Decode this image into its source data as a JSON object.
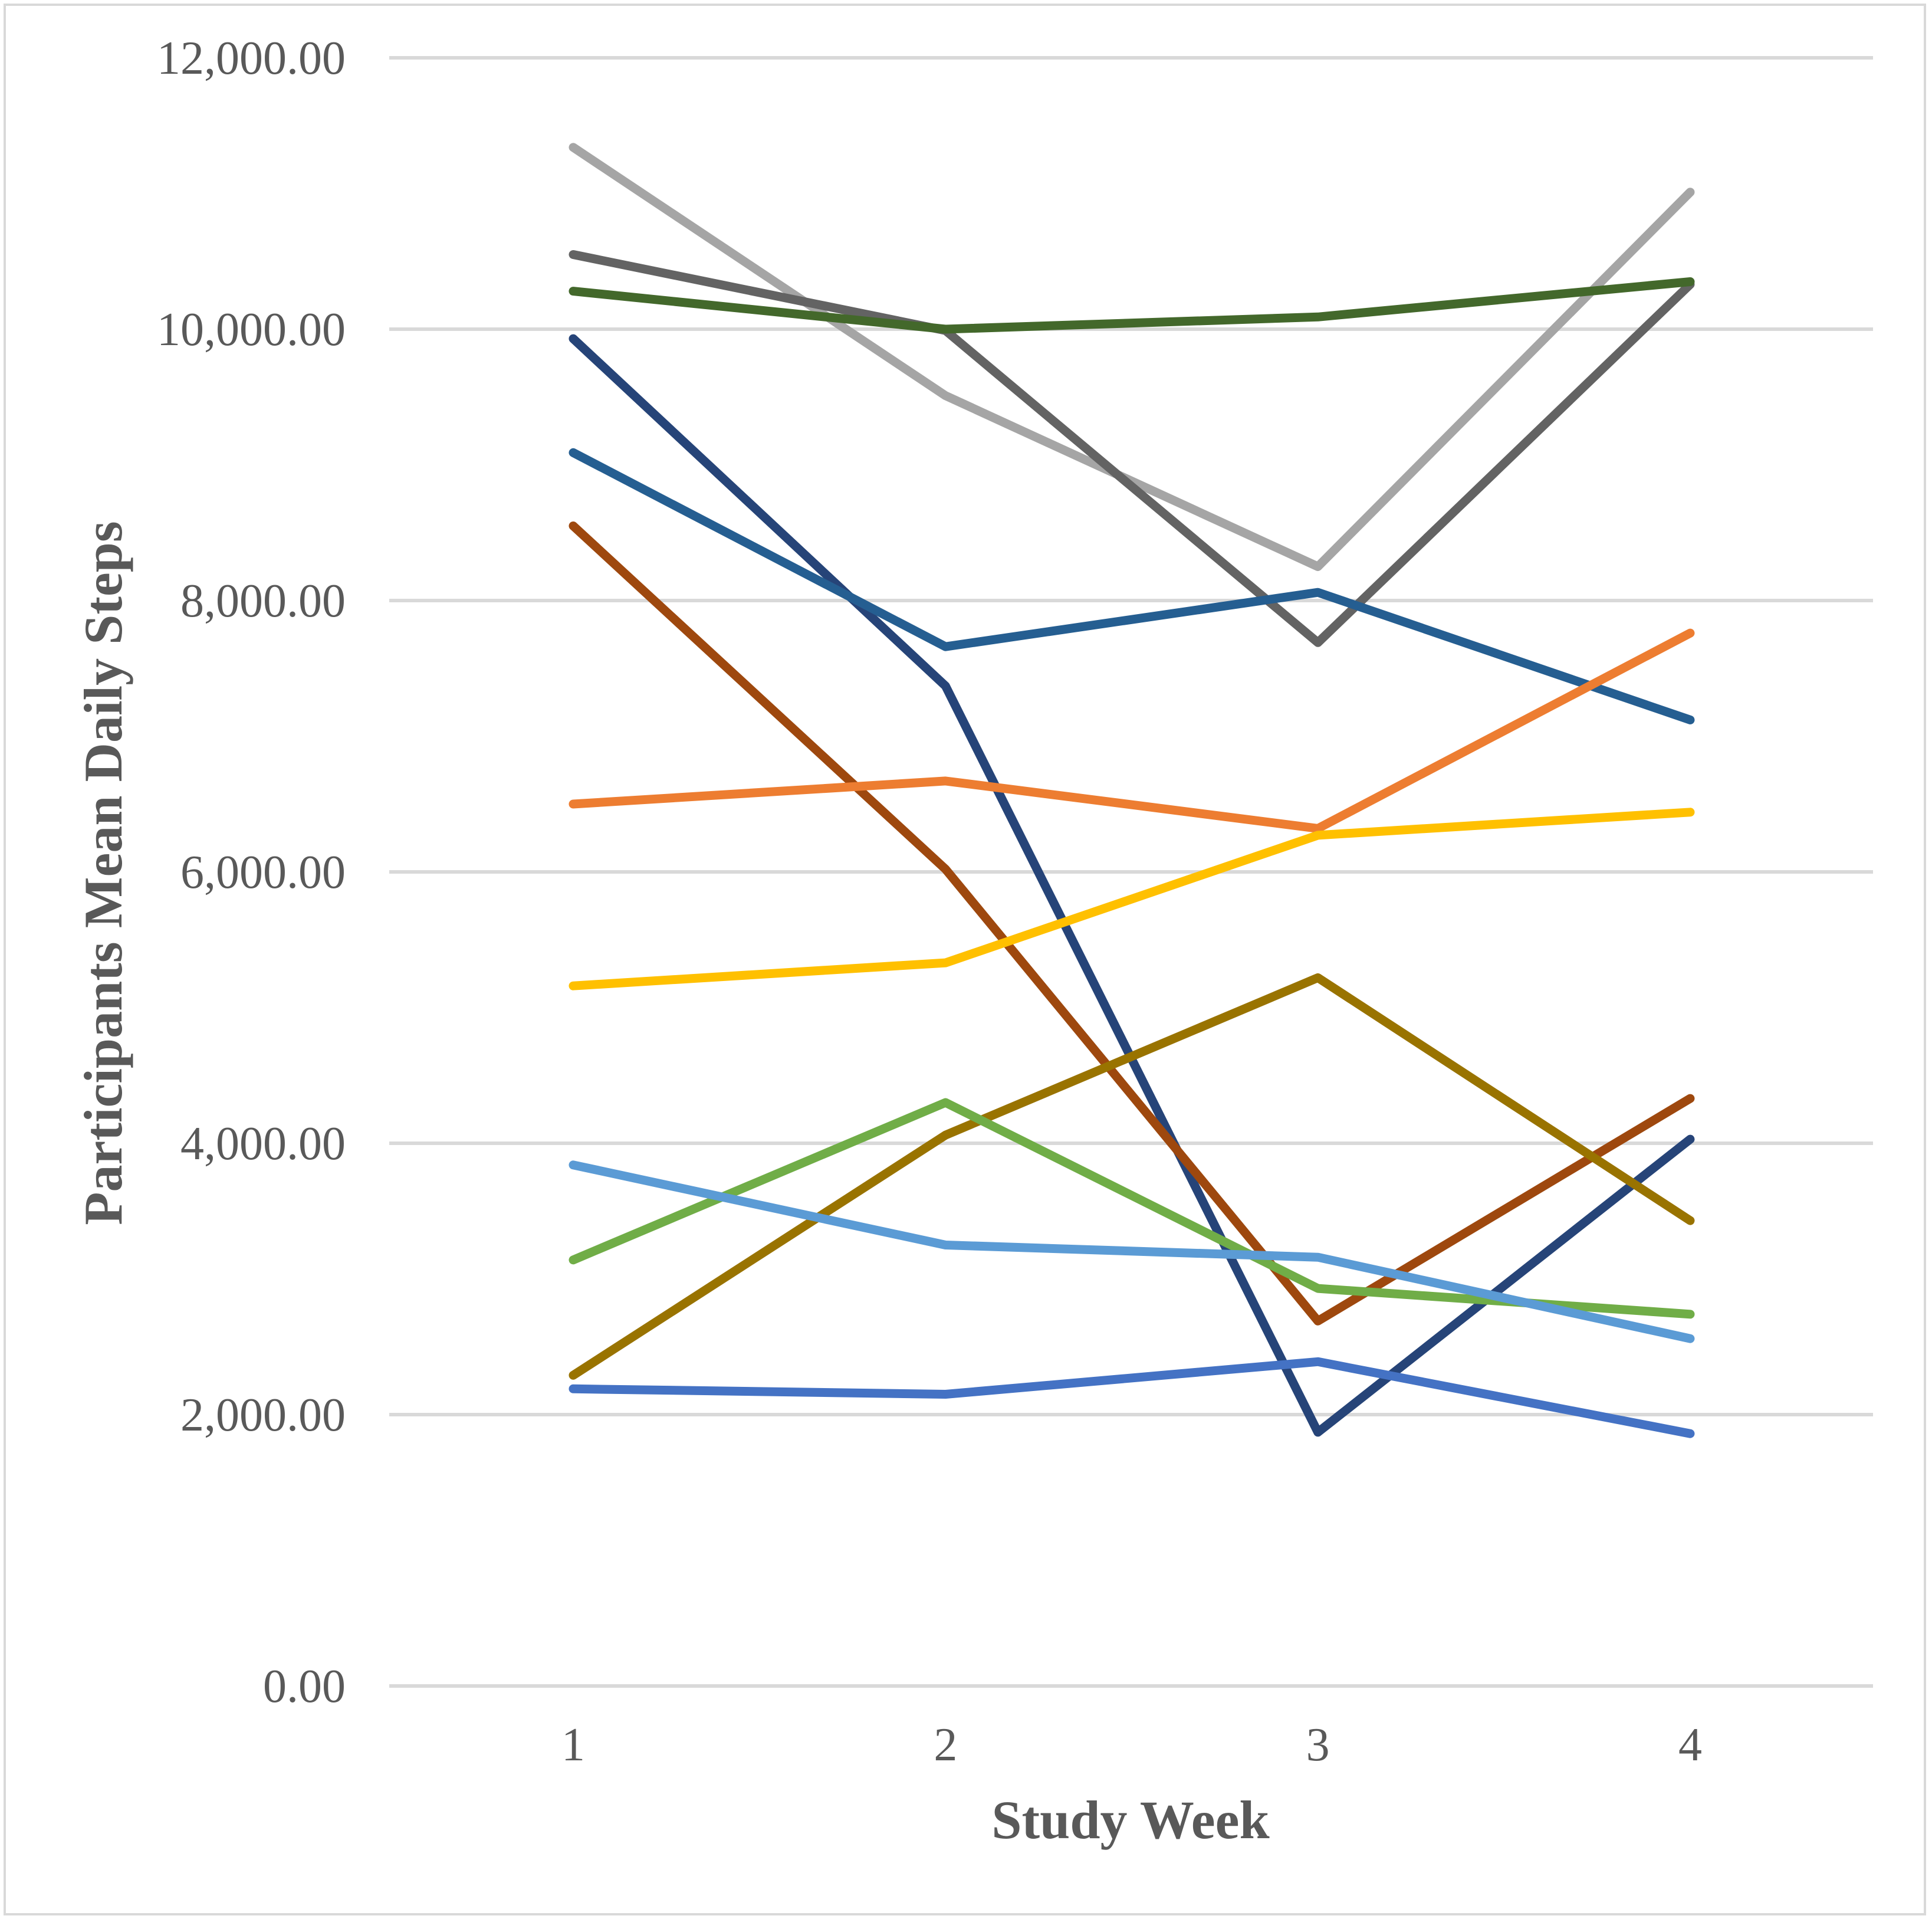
{
  "chart_data": {
    "type": "line",
    "title": "",
    "xlabel": "Study Week",
    "ylabel": "Participants Mean Daily Steps",
    "x": [
      1,
      2,
      3,
      4
    ],
    "x_tick_labels": [
      "1",
      "2",
      "3",
      "4"
    ],
    "ylim": [
      0,
      12000
    ],
    "y_ticks": [
      0,
      2000,
      4000,
      6000,
      8000,
      10000,
      12000
    ],
    "y_tick_labels": [
      "0.00",
      "2,000.00",
      "4,000.00",
      "6,000.00",
      "8,000.00",
      "10,000.00",
      "12,000.00"
    ],
    "grid": true,
    "legend": "none",
    "series": [
      {
        "name": "light-gray",
        "color": "#a5a5a5",
        "values": [
          11340,
          9510,
          8250,
          11010
        ]
      },
      {
        "name": "dark-gray",
        "color": "#636363",
        "values": [
          10550,
          9990,
          7690,
          10330
        ]
      },
      {
        "name": "dark-green",
        "color": "#43682b",
        "values": [
          10280,
          10000,
          10090,
          10350
        ]
      },
      {
        "name": "navy",
        "color": "#264478",
        "values": [
          9930,
          7370,
          1870,
          4030
        ]
      },
      {
        "name": "steel-blue",
        "color": "#255e91",
        "values": [
          9090,
          7660,
          8060,
          7120
        ]
      },
      {
        "name": "rust",
        "color": "#9e480e",
        "values": [
          8550,
          6020,
          2690,
          4330
        ]
      },
      {
        "name": "orange",
        "color": "#ed7d31",
        "values": [
          6500,
          6670,
          6320,
          7760
        ]
      },
      {
        "name": "gold",
        "color": "#ffc000",
        "values": [
          5160,
          5330,
          6270,
          6440
        ]
      },
      {
        "name": "olive",
        "color": "#997300",
        "values": [
          2290,
          4060,
          5220,
          3430
        ]
      },
      {
        "name": "green",
        "color": "#70ad47",
        "values": [
          3140,
          4300,
          2930,
          2740
        ]
      },
      {
        "name": "light-blue",
        "color": "#5b9bd5",
        "values": [
          3840,
          3250,
          3160,
          2560
        ]
      },
      {
        "name": "royal-blue",
        "color": "#4472c4",
        "values": [
          2190,
          2150,
          2390,
          1860
        ]
      }
    ]
  }
}
